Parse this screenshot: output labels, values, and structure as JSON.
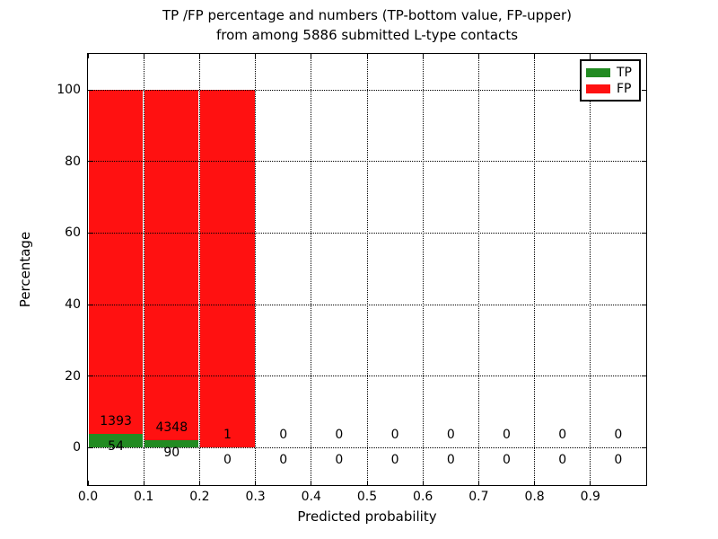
{
  "figure": {
    "title_line1": "TP /FP percentage and numbers (TP-bottom value, FP-upper)",
    "title_line2": "from among 5886 submitted L-type contacts",
    "xlabel": "Predicted probability",
    "ylabel": "Percentage"
  },
  "colors": {
    "tp": "#228b22",
    "fp": "#ff1111",
    "grid": "#000000",
    "axis": "#000000",
    "background": "#ffffff"
  },
  "legend": {
    "entries": [
      {
        "label": "TP",
        "color_key": "tp"
      },
      {
        "label": "FP",
        "color_key": "fp"
      }
    ]
  },
  "chart_data": {
    "type": "bar",
    "stacked": true,
    "title": "TP /FP percentage and numbers (TP-bottom value, FP-upper)\nfrom among 5886 submitted L-type contacts",
    "xlabel": "Predicted probability",
    "ylabel": "Percentage",
    "total_contacts": 5886,
    "xlim": [
      0.0,
      1.0
    ],
    "ylim": [
      -10.5,
      110.1
    ],
    "grid": "dotted, on",
    "legend_position": "upper right",
    "bin_width": 0.1,
    "xticks": [
      0.0,
      0.1,
      0.2,
      0.3,
      0.4,
      0.5,
      0.6,
      0.7,
      0.8,
      0.9
    ],
    "xtick_labels": [
      "0.0",
      "0.1",
      "0.2",
      "0.3",
      "0.4",
      "0.5",
      "0.6",
      "0.7",
      "0.8",
      "0.9"
    ],
    "yticks": [
      0,
      20,
      40,
      60,
      80,
      100
    ],
    "ytick_labels": [
      "0",
      "20",
      "40",
      "60",
      "80",
      "100"
    ],
    "series": [
      {
        "name": "TP",
        "color_key": "tp"
      },
      {
        "name": "FP",
        "color_key": "fp"
      }
    ],
    "bins": [
      {
        "x_start": 0.0,
        "tp_count": 54,
        "fp_count": 1393,
        "tp_pct": 3.73,
        "fp_pct": 96.27
      },
      {
        "x_start": 0.1,
        "tp_count": 90,
        "fp_count": 4348,
        "tp_pct": 2.03,
        "fp_pct": 97.97
      },
      {
        "x_start": 0.2,
        "tp_count": 0,
        "fp_count": 1,
        "tp_pct": 0.0,
        "fp_pct": 100.0
      },
      {
        "x_start": 0.3,
        "tp_count": 0,
        "fp_count": 0,
        "tp_pct": 0.0,
        "fp_pct": 0.0
      },
      {
        "x_start": 0.4,
        "tp_count": 0,
        "fp_count": 0,
        "tp_pct": 0.0,
        "fp_pct": 0.0
      },
      {
        "x_start": 0.5,
        "tp_count": 0,
        "fp_count": 0,
        "tp_pct": 0.0,
        "fp_pct": 0.0
      },
      {
        "x_start": 0.6,
        "tp_count": 0,
        "fp_count": 0,
        "tp_pct": 0.0,
        "fp_pct": 0.0
      },
      {
        "x_start": 0.7,
        "tp_count": 0,
        "fp_count": 0,
        "tp_pct": 0.0,
        "fp_pct": 0.0
      },
      {
        "x_start": 0.8,
        "tp_count": 0,
        "fp_count": 0,
        "tp_pct": 0.0,
        "fp_pct": 0.0
      },
      {
        "x_start": 0.9,
        "tp_count": 0,
        "fp_count": 0,
        "tp_pct": 0.0,
        "fp_pct": 0.0
      }
    ]
  }
}
